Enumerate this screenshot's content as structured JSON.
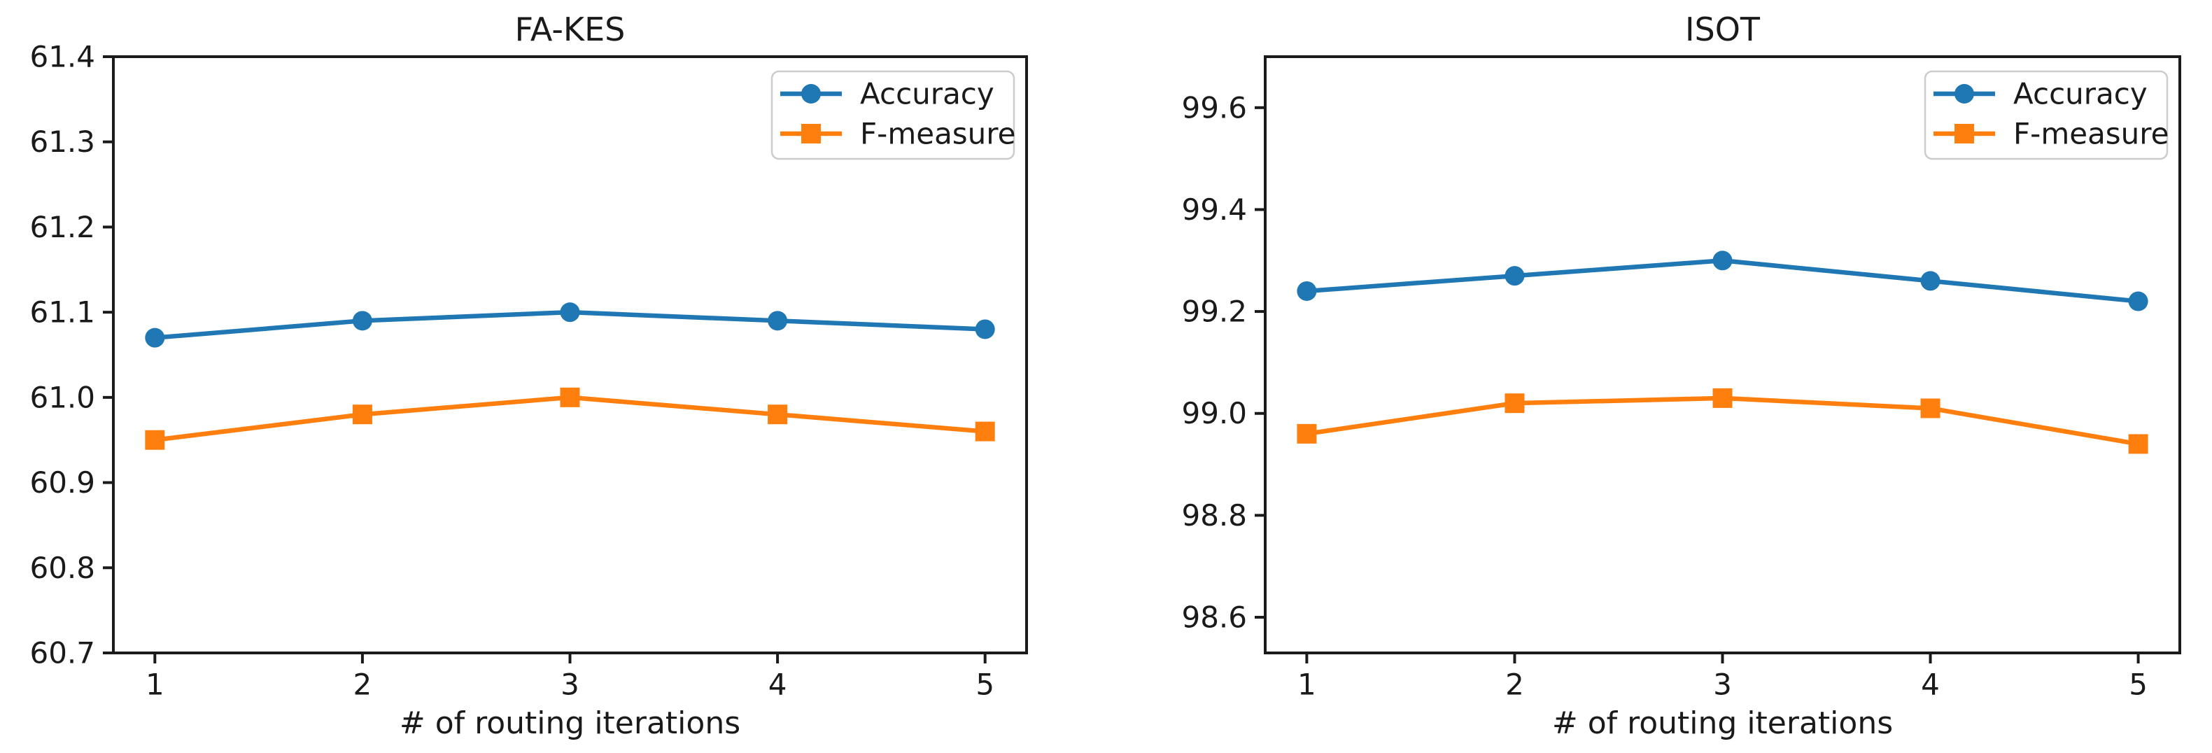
{
  "figure": {
    "background": "#ffffff",
    "text_color": "#1a1a1a",
    "spine_color": "#1a1a1a",
    "legend_border_color": "#cccccc",
    "legend_background": "#ffffff"
  },
  "chart_data": [
    {
      "type": "line",
      "title": "FA-KES",
      "xlabel": "# of routing iterations",
      "ylabel": "",
      "x": [
        1,
        2,
        3,
        4,
        5
      ],
      "xtick_labels": [
        "1",
        "2",
        "3",
        "4",
        "5"
      ],
      "ytick_labels": [
        "60.7",
        "60.8",
        "60.9",
        "61.0",
        "61.1",
        "61.2",
        "61.3",
        "61.4"
      ],
      "xlim": [
        0.8,
        5.2
      ],
      "ylim": [
        60.7,
        61.4
      ],
      "grid": false,
      "legend_position": "upper-right",
      "series": [
        {
          "name": "Accuracy",
          "marker": "circle",
          "color": "#1f77b4",
          "values": [
            61.07,
            61.09,
            61.1,
            61.09,
            61.08
          ]
        },
        {
          "name": "F-measure",
          "marker": "square",
          "color": "#ff7f0e",
          "values": [
            60.95,
            60.98,
            61.0,
            60.98,
            60.96
          ]
        }
      ]
    },
    {
      "type": "line",
      "title": "ISOT",
      "xlabel": "# of routing iterations",
      "ylabel": "",
      "x": [
        1,
        2,
        3,
        4,
        5
      ],
      "xtick_labels": [
        "1",
        "2",
        "3",
        "4",
        "5"
      ],
      "ytick_labels": [
        "98.6",
        "98.8",
        "99.0",
        "99.2",
        "99.4",
        "99.6"
      ],
      "xlim": [
        0.8,
        5.2
      ],
      "ylim": [
        98.53,
        99.7
      ],
      "grid": false,
      "legend_position": "upper-right",
      "series": [
        {
          "name": "Accuracy",
          "marker": "circle",
          "color": "#1f77b4",
          "values": [
            99.24,
            99.27,
            99.3,
            99.26,
            99.22
          ]
        },
        {
          "name": "F-measure",
          "marker": "square",
          "color": "#ff7f0e",
          "values": [
            98.96,
            99.02,
            99.03,
            99.01,
            98.94
          ]
        }
      ]
    }
  ]
}
